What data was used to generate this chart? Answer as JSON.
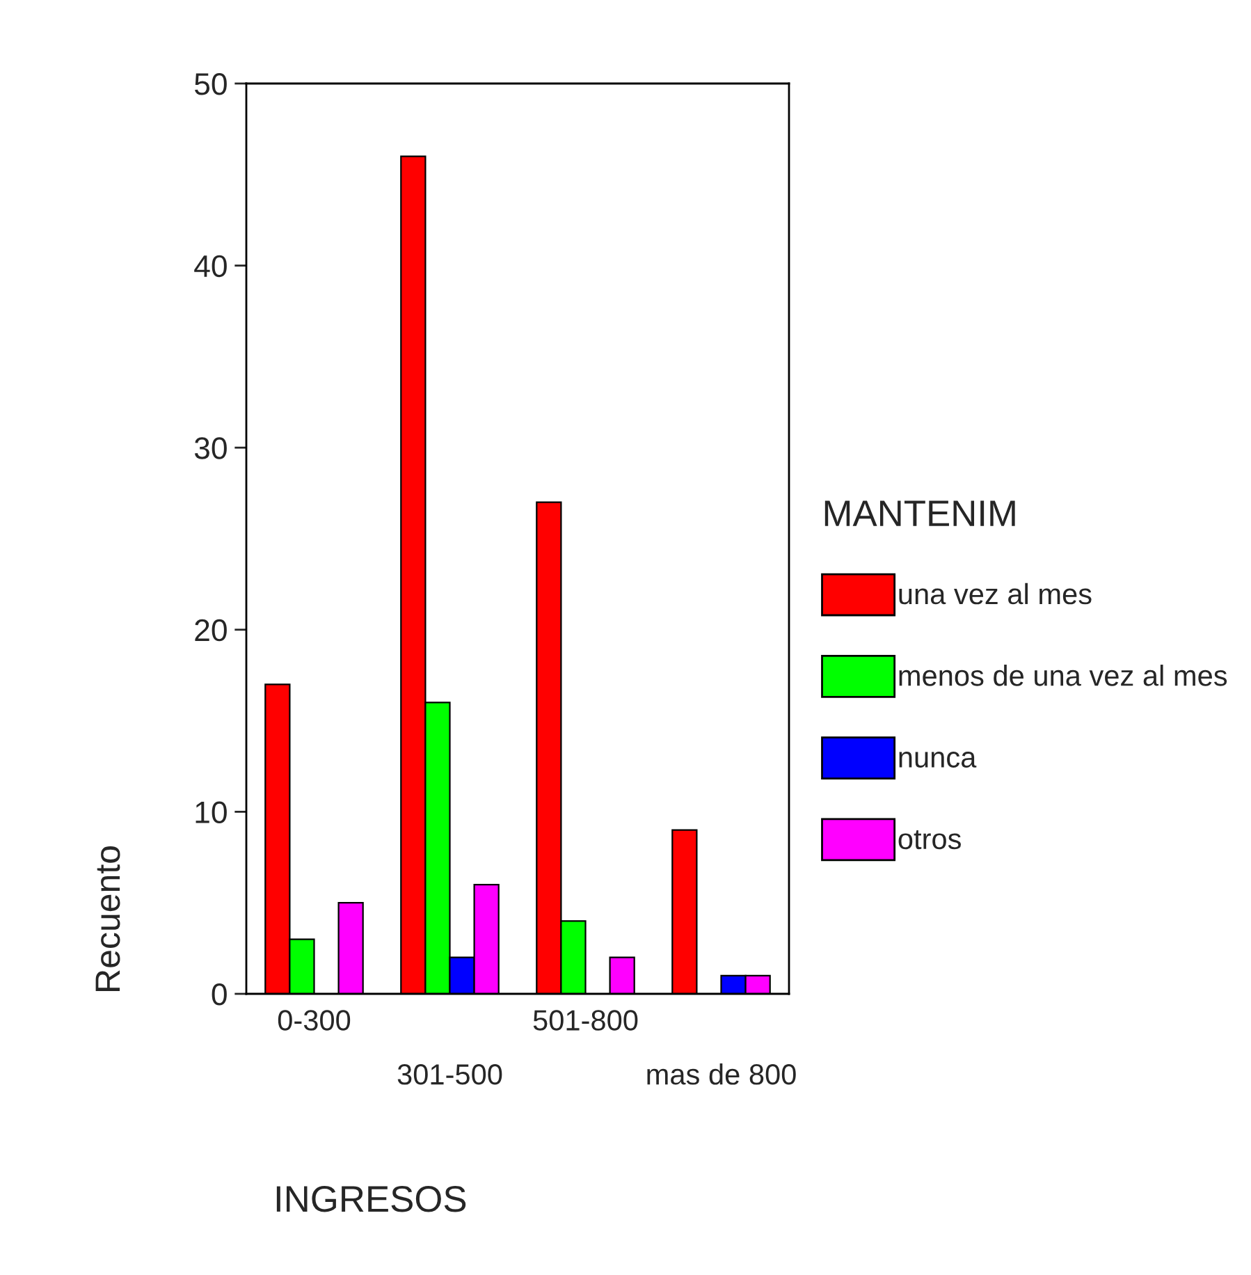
{
  "chart_data": {
    "type": "bar",
    "xlabel": "INGRESOS",
    "ylabel": "Recuento",
    "legend_title": "MANTENIM",
    "legend": "right",
    "categories": [
      "0-300",
      "301-500",
      "501-800",
      "mas de 800"
    ],
    "series": [
      {
        "name": "una vez al mes",
        "color": "#ff0000",
        "values": [
          17,
          46,
          27,
          9
        ]
      },
      {
        "name": "menos de una vez al mes",
        "color": "#00ff00",
        "values": [
          3,
          16,
          4,
          null
        ]
      },
      {
        "name": "nunca",
        "color": "#0000ff",
        "values": [
          null,
          2,
          null,
          1
        ]
      },
      {
        "name": "otros",
        "color": "#ff00ff",
        "values": [
          5,
          6,
          2,
          1
        ]
      }
    ],
    "ylim": [
      0,
      50
    ],
    "yticks": [
      0,
      10,
      20,
      30,
      40,
      50
    ],
    "grid": false
  }
}
